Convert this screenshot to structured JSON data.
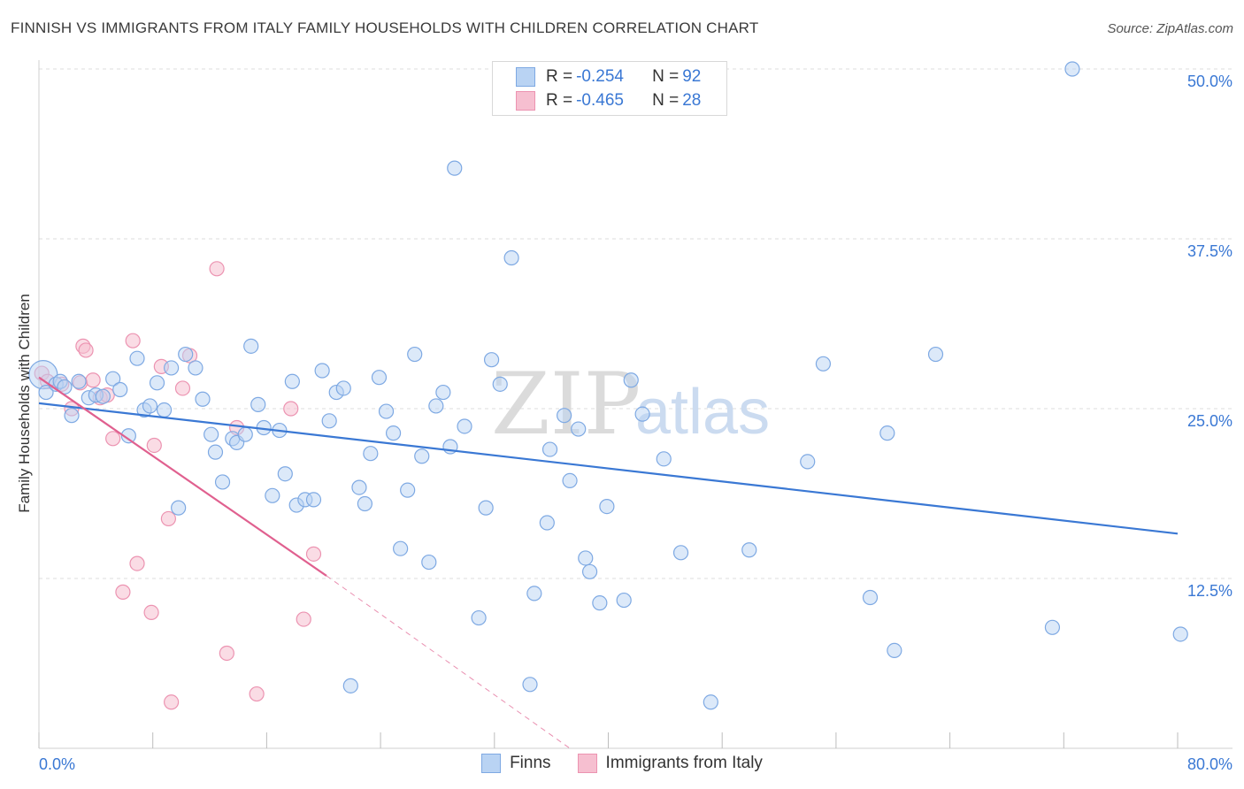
{
  "title": "FINNISH VS IMMIGRANTS FROM ITALY FAMILY HOUSEHOLDS WITH CHILDREN CORRELATION CHART",
  "source": "Source: ZipAtlas.com",
  "watermark": {
    "zip": "ZIP",
    "atlas": "atlas"
  },
  "colors": {
    "blue": "#3a78d4",
    "blue_fill": "#b9d3f3",
    "pink": "#e0608f",
    "pink_fill": "#f6bfd0",
    "tick_label": "#3a78d4"
  },
  "legend_top": {
    "rows": [
      {
        "r_label": "R = ",
        "r_value": "-0.254",
        "n_label": "N = ",
        "n_value": "92"
      },
      {
        "r_label": "R = ",
        "r_value": "-0.465",
        "n_label": "N = ",
        "n_value": "28"
      }
    ]
  },
  "legend_bottom": [
    "Finns",
    "Immigrants from Italy"
  ],
  "chart_data": {
    "type": "scatter",
    "ylabel": "Family Households with Children",
    "xlim": [
      0,
      80
    ],
    "ylim": [
      0,
      50
    ],
    "x_tick_labels": [
      "0.0%",
      "80.0%"
    ],
    "y_ticks": [
      12.5,
      25.0,
      37.5,
      50.0
    ],
    "y_tick_labels": [
      "12.5%",
      "25.0%",
      "37.5%",
      "50.0%"
    ],
    "grid": true,
    "series": [
      {
        "name": "Finns",
        "trend": {
          "x": [
            0,
            80
          ],
          "y": [
            25.4,
            15.8
          ]
        },
        "points": [
          [
            0.3,
            27.5
          ],
          [
            0.5,
            26.2
          ],
          [
            1.2,
            26.8
          ],
          [
            1.5,
            27.0
          ],
          [
            1.8,
            26.6
          ],
          [
            2.3,
            24.5
          ],
          [
            2.8,
            27.0
          ],
          [
            3.5,
            25.8
          ],
          [
            4.0,
            26.0
          ],
          [
            4.5,
            25.9
          ],
          [
            5.2,
            27.2
          ],
          [
            5.7,
            26.4
          ],
          [
            6.3,
            23.0
          ],
          [
            6.9,
            28.7
          ],
          [
            7.4,
            24.9
          ],
          [
            7.8,
            25.2
          ],
          [
            8.3,
            26.9
          ],
          [
            8.8,
            24.9
          ],
          [
            9.3,
            28.0
          ],
          [
            9.8,
            17.7
          ],
          [
            10.3,
            29.0
          ],
          [
            11.0,
            28.0
          ],
          [
            11.5,
            25.7
          ],
          [
            12.1,
            23.1
          ],
          [
            12.4,
            21.8
          ],
          [
            12.9,
            19.6
          ],
          [
            13.6,
            22.8
          ],
          [
            13.9,
            22.5
          ],
          [
            14.5,
            23.1
          ],
          [
            14.9,
            29.6
          ],
          [
            15.4,
            25.3
          ],
          [
            15.8,
            23.6
          ],
          [
            16.4,
            18.6
          ],
          [
            16.9,
            23.4
          ],
          [
            17.3,
            20.2
          ],
          [
            17.8,
            27.0
          ],
          [
            18.1,
            17.9
          ],
          [
            18.7,
            18.3
          ],
          [
            19.3,
            18.3
          ],
          [
            19.9,
            27.8
          ],
          [
            20.4,
            24.1
          ],
          [
            20.9,
            26.2
          ],
          [
            21.4,
            26.5
          ],
          [
            21.9,
            4.6
          ],
          [
            22.5,
            19.2
          ],
          [
            22.9,
            18.0
          ],
          [
            23.3,
            21.7
          ],
          [
            23.9,
            27.3
          ],
          [
            24.4,
            24.8
          ],
          [
            24.9,
            23.2
          ],
          [
            25.4,
            14.7
          ],
          [
            25.9,
            19.0
          ],
          [
            26.4,
            29.0
          ],
          [
            26.9,
            21.5
          ],
          [
            27.4,
            13.7
          ],
          [
            27.9,
            25.2
          ],
          [
            28.4,
            26.2
          ],
          [
            28.9,
            22.2
          ],
          [
            29.2,
            42.7
          ],
          [
            29.9,
            23.7
          ],
          [
            30.9,
            9.6
          ],
          [
            31.4,
            17.7
          ],
          [
            31.8,
            28.6
          ],
          [
            32.4,
            26.8
          ],
          [
            33.2,
            36.1
          ],
          [
            34.5,
            4.7
          ],
          [
            34.8,
            11.4
          ],
          [
            35.7,
            16.6
          ],
          [
            35.9,
            22.0
          ],
          [
            36.9,
            24.5
          ],
          [
            37.3,
            19.7
          ],
          [
            37.9,
            23.5
          ],
          [
            38.4,
            14.0
          ],
          [
            38.7,
            13.0
          ],
          [
            39.4,
            10.7
          ],
          [
            39.9,
            17.8
          ],
          [
            41.1,
            10.9
          ],
          [
            41.6,
            27.1
          ],
          [
            42.4,
            24.6
          ],
          [
            43.9,
            21.3
          ],
          [
            45.1,
            14.4
          ],
          [
            47.2,
            3.4
          ],
          [
            49.9,
            14.6
          ],
          [
            54.0,
            21.1
          ],
          [
            55.1,
            28.3
          ],
          [
            58.4,
            11.1
          ],
          [
            59.6,
            23.2
          ],
          [
            60.1,
            7.2
          ],
          [
            63.0,
            29.0
          ],
          [
            71.2,
            8.9
          ],
          [
            72.6,
            50.0
          ],
          [
            80.2,
            8.4
          ]
        ]
      },
      {
        "name": "Immigrants from Italy",
        "trend": {
          "x": [
            0,
            20.2
          ],
          "y": [
            27.3,
            12.7
          ]
        },
        "trend_dashed": {
          "x": [
            20.2,
            37.3
          ],
          "y": [
            12.7,
            0
          ]
        },
        "points": [
          [
            0.2,
            27.6
          ],
          [
            0.6,
            27.0
          ],
          [
            1.6,
            26.8
          ],
          [
            2.3,
            25.0
          ],
          [
            2.9,
            26.9
          ],
          [
            3.1,
            29.6
          ],
          [
            3.3,
            29.3
          ],
          [
            3.8,
            27.1
          ],
          [
            4.3,
            25.8
          ],
          [
            4.8,
            26.0
          ],
          [
            5.2,
            22.8
          ],
          [
            5.9,
            11.5
          ],
          [
            6.6,
            30.0
          ],
          [
            6.9,
            13.6
          ],
          [
            7.9,
            10.0
          ],
          [
            8.1,
            22.3
          ],
          [
            8.6,
            28.1
          ],
          [
            9.1,
            16.9
          ],
          [
            9.3,
            3.4
          ],
          [
            10.1,
            26.5
          ],
          [
            10.6,
            28.9
          ],
          [
            12.5,
            35.3
          ],
          [
            13.2,
            7.0
          ],
          [
            13.9,
            23.6
          ],
          [
            15.3,
            4.0
          ],
          [
            17.7,
            25.0
          ],
          [
            18.6,
            9.5
          ],
          [
            19.3,
            14.3
          ]
        ]
      }
    ]
  }
}
